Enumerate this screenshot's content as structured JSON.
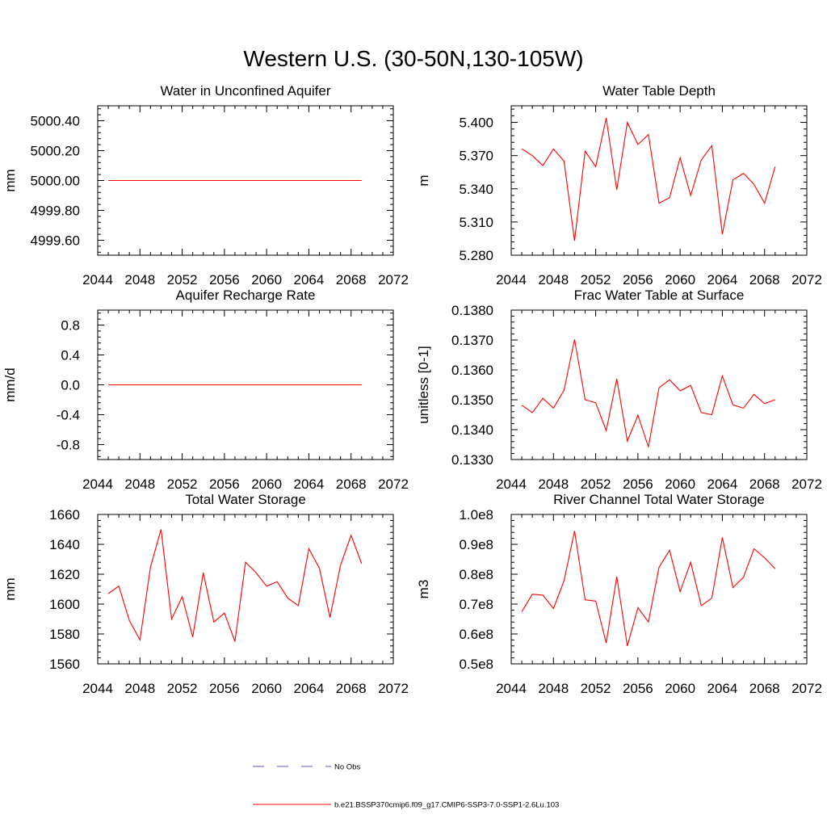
{
  "figure_title": "Western U.S. (30-50N,130-105W)",
  "legend": {
    "entries": [
      {
        "label": "No Obs",
        "style": "dashed",
        "color": "#5a5aa8"
      },
      {
        "label": "b.e21.BSSP370cmip6.f09_g17.CMIP6-SSP3-7.0-SSP1-2.6Lu.103",
        "style": "solid",
        "color": "#ff0000"
      }
    ]
  },
  "chart_data": [
    {
      "type": "line",
      "title": "Water in Unconfined Aquifer",
      "ylabel": "mm",
      "xlim": [
        2044,
        2072
      ],
      "ylim": [
        4999.5,
        5000.5
      ],
      "xticks": [
        2044,
        2048,
        2052,
        2056,
        2060,
        2064,
        2068,
        2072
      ],
      "yticks": [
        4999.6,
        4999.8,
        5000.0,
        5000.2,
        5000.4
      ],
      "ytick_labels": [
        "4999.60",
        "4999.80",
        "5000.00",
        "5000.20",
        "5000.40"
      ],
      "series": [
        {
          "color": "#ff0000",
          "x": [
            2045,
            2046,
            2047,
            2048,
            2049,
            2050,
            2051,
            2052,
            2053,
            2054,
            2055,
            2056,
            2057,
            2058,
            2059,
            2060,
            2061,
            2062,
            2063,
            2064,
            2065,
            2066,
            2067,
            2068,
            2069
          ],
          "values": [
            5000.0,
            5000.0,
            5000.0,
            5000.0,
            5000.0,
            5000.0,
            5000.0,
            5000.0,
            5000.0,
            5000.0,
            5000.0,
            5000.0,
            5000.0,
            5000.0,
            5000.0,
            5000.0,
            5000.0,
            5000.0,
            5000.0,
            5000.0,
            5000.0,
            5000.0,
            5000.0,
            5000.0,
            5000.0
          ]
        }
      ]
    },
    {
      "type": "line",
      "title": "Water Table Depth",
      "ylabel": "m",
      "xlim": [
        2044,
        2072
      ],
      "ylim": [
        5.28,
        5.415
      ],
      "xticks": [
        2044,
        2048,
        2052,
        2056,
        2060,
        2064,
        2068,
        2072
      ],
      "yticks": [
        5.28,
        5.31,
        5.34,
        5.37,
        5.4
      ],
      "ytick_labels": [
        "5.280",
        "5.310",
        "5.340",
        "5.370",
        "5.400"
      ],
      "series": [
        {
          "color": "#ff0000",
          "x": [
            2045,
            2046,
            2047,
            2048,
            2049,
            2050,
            2051,
            2052,
            2053,
            2054,
            2055,
            2056,
            2057,
            2058,
            2059,
            2060,
            2061,
            2062,
            2063,
            2064,
            2065,
            2066,
            2067,
            2068,
            2069
          ],
          "values": [
            5.376,
            5.37,
            5.361,
            5.376,
            5.365,
            5.293,
            5.374,
            5.36,
            5.404,
            5.339,
            5.4,
            5.38,
            5.389,
            5.327,
            5.332,
            5.368,
            5.334,
            5.366,
            5.379,
            5.299,
            5.348,
            5.354,
            5.344,
            5.327,
            5.36
          ]
        }
      ]
    },
    {
      "type": "line",
      "title": "Aquifer Recharge Rate",
      "ylabel": "mm/d",
      "xlim": [
        2044,
        2072
      ],
      "ylim": [
        -1.0,
        1.0
      ],
      "xticks": [
        2044,
        2048,
        2052,
        2056,
        2060,
        2064,
        2068,
        2072
      ],
      "yticks": [
        -0.8,
        -0.4,
        0.0,
        0.4,
        0.8
      ],
      "ytick_labels": [
        "-0.8",
        "-0.4",
        "0.0",
        "0.4",
        "0.8"
      ],
      "series": [
        {
          "color": "#ff0000",
          "x": [
            2045,
            2046,
            2047,
            2048,
            2049,
            2050,
            2051,
            2052,
            2053,
            2054,
            2055,
            2056,
            2057,
            2058,
            2059,
            2060,
            2061,
            2062,
            2063,
            2064,
            2065,
            2066,
            2067,
            2068,
            2069
          ],
          "values": [
            0,
            0,
            0,
            0,
            0,
            0,
            0,
            0,
            0,
            0,
            0,
            0,
            0,
            0,
            0,
            0,
            0,
            0,
            0,
            0,
            0,
            0,
            0,
            0,
            0
          ]
        }
      ]
    },
    {
      "type": "line",
      "title": "Frac Water Table at Surface",
      "ylabel": "unitless [0-1]",
      "xlim": [
        2044,
        2072
      ],
      "ylim": [
        0.133,
        0.138
      ],
      "xticks": [
        2044,
        2048,
        2052,
        2056,
        2060,
        2064,
        2068,
        2072
      ],
      "yticks": [
        0.133,
        0.134,
        0.135,
        0.136,
        0.137,
        0.138
      ],
      "ytick_labels": [
        "0.1330",
        "0.1340",
        "0.1350",
        "0.1360",
        "0.1370",
        "0.1380"
      ],
      "series": [
        {
          "color": "#ff0000",
          "x": [
            2045,
            2046,
            2047,
            2048,
            2049,
            2050,
            2051,
            2052,
            2053,
            2054,
            2055,
            2056,
            2057,
            2058,
            2059,
            2060,
            2061,
            2062,
            2063,
            2064,
            2065,
            2066,
            2067,
            2068,
            2069
          ],
          "values": [
            0.13482,
            0.13457,
            0.13505,
            0.13472,
            0.13532,
            0.13702,
            0.135,
            0.1349,
            0.13397,
            0.1357,
            0.13362,
            0.13448,
            0.13342,
            0.1354,
            0.13567,
            0.1353,
            0.13548,
            0.13457,
            0.1345,
            0.1358,
            0.13483,
            0.13472,
            0.13518,
            0.13487,
            0.135
          ]
        }
      ]
    },
    {
      "type": "line",
      "title": "Total Water Storage",
      "ylabel": "mm",
      "xlim": [
        2044,
        2072
      ],
      "ylim": [
        1560,
        1660
      ],
      "xticks": [
        2044,
        2048,
        2052,
        2056,
        2060,
        2064,
        2068,
        2072
      ],
      "yticks": [
        1560,
        1580,
        1600,
        1620,
        1640,
        1660
      ],
      "ytick_labels": [
        "1560",
        "1580",
        "1600",
        "1620",
        "1640",
        "1660"
      ],
      "series": [
        {
          "color": "#ff0000",
          "x": [
            2045,
            2046,
            2047,
            2048,
            2049,
            2050,
            2051,
            2052,
            2053,
            2054,
            2055,
            2056,
            2057,
            2058,
            2059,
            2060,
            2061,
            2062,
            2063,
            2064,
            2065,
            2066,
            2067,
            2068,
            2069
          ],
          "values": [
            1607,
            1612,
            1589,
            1576,
            1625,
            1650,
            1590,
            1605,
            1578,
            1621,
            1588,
            1594,
            1575,
            1628,
            1621,
            1612,
            1615,
            1604,
            1599,
            1637,
            1624,
            1591,
            1626,
            1646,
            1627
          ]
        }
      ]
    },
    {
      "type": "line",
      "title": "River Channel Total Water Storage",
      "ylabel": "m3",
      "xlim": [
        2044,
        2072
      ],
      "ylim": [
        50000000,
        100000000
      ],
      "xticks": [
        2044,
        2048,
        2052,
        2056,
        2060,
        2064,
        2068,
        2072
      ],
      "yticks": [
        50000000,
        60000000,
        70000000,
        80000000,
        90000000,
        100000000
      ],
      "ytick_labels": [
        "0.5e8",
        "0.6e8",
        "0.7e8",
        "0.8e8",
        "0.9e8",
        "1.0e8"
      ],
      "series": [
        {
          "color": "#ff0000",
          "x": [
            2045,
            2046,
            2047,
            2048,
            2049,
            2050,
            2051,
            2052,
            2053,
            2054,
            2055,
            2056,
            2057,
            2058,
            2059,
            2060,
            2061,
            2062,
            2063,
            2064,
            2065,
            2066,
            2067,
            2068,
            2069
          ],
          "values": [
            67500000,
            73300000,
            73000000,
            68500000,
            77800000,
            94500000,
            71400000,
            71000000,
            57000000,
            79200000,
            56000000,
            68800000,
            64000000,
            82300000,
            88000000,
            74200000,
            84000000,
            69500000,
            72000000,
            92300000,
            75500000,
            79000000,
            88500000,
            85500000,
            81800000
          ]
        }
      ]
    }
  ]
}
